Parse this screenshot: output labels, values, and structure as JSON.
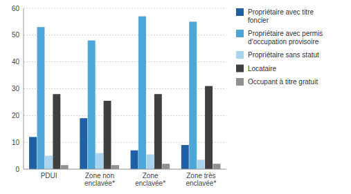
{
  "chart_data": {
    "type": "bar",
    "categories": [
      "PDUI",
      "Zone non\nenclavée*",
      "Zone\nenclavée*",
      "Zone très\nenclavée*"
    ],
    "series": [
      {
        "name": "Propriétaire avec titre\nfoncier",
        "color": "#1f5fa6",
        "values": [
          12,
          19,
          7,
          9
        ]
      },
      {
        "name": "Propriétaire avec permis\nd’occupation provisoire",
        "color": "#4da6d9",
        "values": [
          53,
          48,
          57,
          55
        ]
      },
      {
        "name": "Propriétaire sans statut",
        "color": "#a8d4f0",
        "values": [
          5,
          6,
          5.5,
          3.5
        ]
      },
      {
        "name": "Locataire",
        "color": "#404040",
        "values": [
          28,
          25.5,
          28,
          31
        ]
      },
      {
        "name": "Occupant à titre gratuit",
        "color": "#909090",
        "values": [
          1.5,
          1.5,
          2,
          2
        ]
      }
    ],
    "ylim": [
      0,
      60
    ],
    "yticks": [
      0,
      10,
      20,
      30,
      40,
      50,
      60
    ],
    "grid": true,
    "legend": "right"
  }
}
